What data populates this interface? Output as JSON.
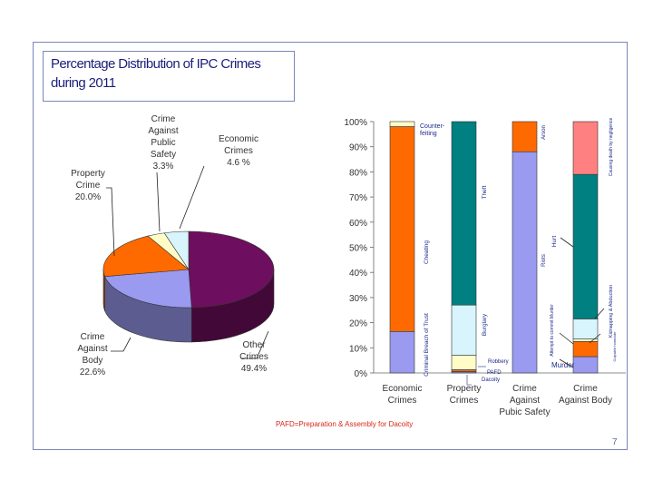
{
  "slide": {
    "title": "Percentage Distribution of IPC Crimes during 2011",
    "footnote": "PAFD=Preparation & Assembly for Dacoity",
    "page_number": "7"
  },
  "chart_data": [
    {
      "type": "pie",
      "title": "Percentage Distribution of IPC Crimes during 2011",
      "slices": [
        {
          "name": "Other Crimes",
          "value": 49.4,
          "label": "Other Crimes",
          "value_label": "49.4%",
          "color": "#6e0e5e"
        },
        {
          "name": "Crime Against Body",
          "value": 22.6,
          "label": "Crime Against Body",
          "value_label": "22.6%",
          "color": "#9a9af0"
        },
        {
          "name": "Property Crime",
          "value": 20.0,
          "label": "Property Crime",
          "value_label": "20.0%",
          "color": "#ff6a00"
        },
        {
          "name": "Crime Against Public Safety",
          "value": 3.3,
          "label": "Crime Against Public Safety",
          "value_label": "3.3%",
          "color": "#fffcc8"
        },
        {
          "name": "Economic Crimes",
          "value": 4.6,
          "label": "Economic Crimes",
          "value_label": "4.6 %",
          "color": "#d8f4fc"
        }
      ]
    },
    {
      "type": "bar",
      "stacked": true,
      "percent": true,
      "ylim": [
        0,
        100
      ],
      "yticks": [
        "0%",
        "10%",
        "20%",
        "30%",
        "40%",
        "50%",
        "60%",
        "70%",
        "80%",
        "90%",
        "100%"
      ],
      "categories": [
        "Economic Crimes",
        "Property Crimes",
        "Crime Against Pubic Safety",
        "Crime Against Body"
      ],
      "stacks": [
        [
          {
            "name": "Criminal Breach of Trust",
            "value": 16.5,
            "color": "#9a9af0"
          },
          {
            "name": "Cheating",
            "value": 81.5,
            "color": "#ff6a00"
          },
          {
            "name": "Counter-feiting",
            "value": 2.0,
            "color": "#fffcc8"
          }
        ],
        [
          {
            "name": "PAFD Dacoity",
            "value": 0.6,
            "color": "#7a8ac8"
          },
          {
            "name": "Dacoity",
            "value": 0.7,
            "color": "#ff6a00"
          },
          {
            "name": "Robbery",
            "value": 5.7,
            "color": "#fffcc8"
          },
          {
            "name": "Burglary",
            "value": 20.0,
            "color": "#d8f4fc"
          },
          {
            "name": "Theft",
            "value": 73.0,
            "color": "#008080"
          }
        ],
        [
          {
            "name": "Riots",
            "value": 88.0,
            "color": "#9a9af0"
          },
          {
            "name": "Arson",
            "value": 12.0,
            "color": "#ff6a00"
          }
        ],
        [
          {
            "name": "Murder",
            "value": 6.5,
            "color": "#9a9af0"
          },
          {
            "name": "Attempt to commit Murder",
            "value": 6.0,
            "color": "#ff6a00"
          },
          {
            "name": "Culpable homicide",
            "value": 1.0,
            "color": "#fffcc8"
          },
          {
            "name": "Kidnapping & Abduction",
            "value": 8.0,
            "color": "#d8f4fc"
          },
          {
            "name": "Hurt",
            "value": 57.5,
            "color": "#008080"
          },
          {
            "name": "Causing death by negligence",
            "value": 21.0,
            "color": "#ff8080"
          }
        ]
      ],
      "annotations": [
        "Counter-feiting",
        "Cheating",
        "Criminal Breach of Trust",
        "Theft",
        "Burglary",
        "Robbery",
        "PAFD",
        "Dacoity",
        "Arson",
        "Riots",
        "Hurt",
        "Murder",
        "Attempt to commit Murder",
        "Culpable homicide",
        "Kidnapping & Abduction",
        "Causing death by negligence"
      ]
    }
  ]
}
